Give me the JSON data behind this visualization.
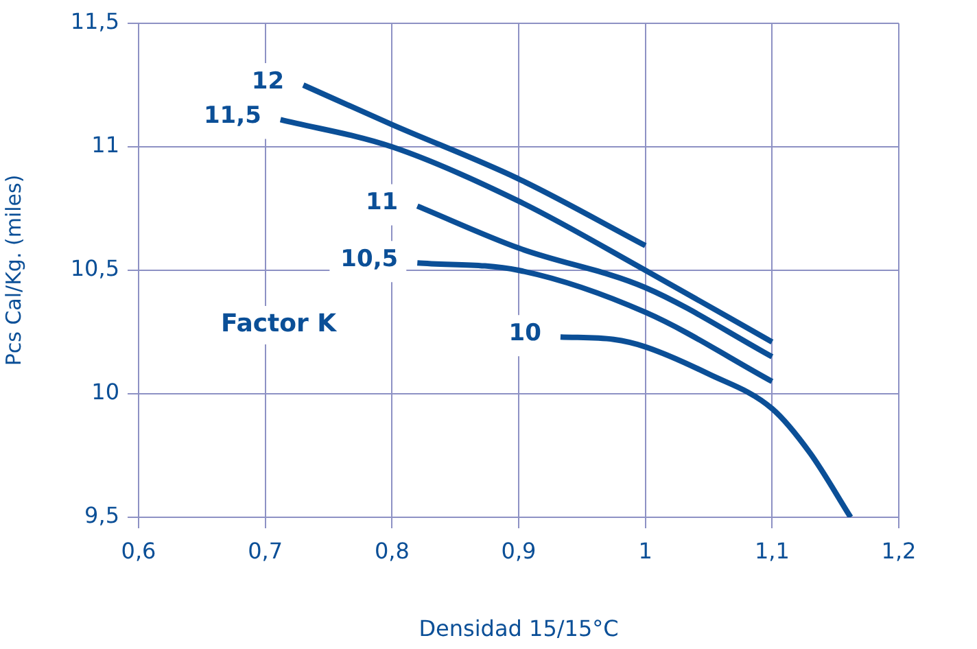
{
  "chart_data": {
    "type": "line",
    "xlabel": "Densidad 15/15°C",
    "ylabel": "Pcs Cal/Kg. (miles)",
    "annotations": [
      "Factor K"
    ],
    "xlim": [
      0.6,
      1.2
    ],
    "ylim": [
      9.5,
      11.5
    ],
    "xticks": [
      {
        "value": 0.6,
        "label": "0,6"
      },
      {
        "value": 0.7,
        "label": "0,7"
      },
      {
        "value": 0.8,
        "label": "0,8"
      },
      {
        "value": 0.9,
        "label": "0,9"
      },
      1,
      {
        "value": 1.1,
        "label": "1,1"
      },
      {
        "value": 1.2,
        "label": "1,2"
      }
    ],
    "yticks": [
      {
        "value": 9.5,
        "label": "9,5"
      },
      10,
      {
        "value": 10.5,
        "label": "10,5"
      },
      11,
      {
        "value": 11.5,
        "label": "11,5"
      }
    ],
    "grid": true,
    "legend": false,
    "marker": "none",
    "line_style": "solid",
    "series": [
      {
        "name": "12",
        "color": "#0b4f97",
        "x": [
          0.73,
          0.8,
          0.9,
          1.0
        ],
        "values": [
          11.25,
          11.09,
          10.87,
          10.6
        ]
      },
      {
        "name": "11,5",
        "color": "#0b4f97",
        "x": [
          0.712,
          0.8,
          0.9,
          1.0,
          1.1
        ],
        "values": [
          11.11,
          11.0,
          10.78,
          10.5,
          10.21
        ]
      },
      {
        "name": "11",
        "color": "#0b4f97",
        "x": [
          0.82,
          0.9,
          1.0,
          1.1
        ],
        "values": [
          10.76,
          10.59,
          10.43,
          10.15
        ]
      },
      {
        "name": "10,5",
        "color": "#0b4f97",
        "x": [
          0.82,
          0.9,
          1.0,
          1.1
        ],
        "values": [
          10.53,
          10.5,
          10.33,
          10.05
        ]
      },
      {
        "name": "10",
        "color": "#0b4f97",
        "x": [
          0.933,
          0.975,
          1.0,
          1.05,
          1.1,
          1.13,
          1.162
        ],
        "values": [
          10.23,
          10.22,
          10.19,
          10.08,
          9.94,
          9.76,
          9.5
        ]
      }
    ]
  }
}
